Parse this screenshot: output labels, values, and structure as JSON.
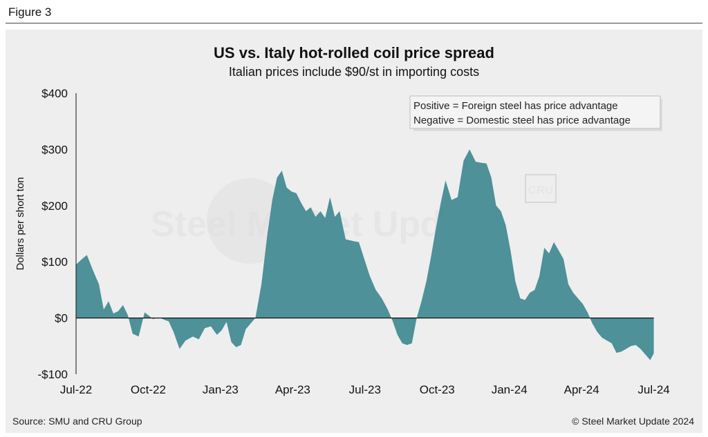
{
  "figure_label": "Figure 3",
  "source": "Source: SMU and CRU Group",
  "copyright": "© Steel Market Update 2024",
  "watermark": {
    "brand": "Steel Market Update",
    "badge": "CRU"
  },
  "colors": {
    "area": "#4e9198",
    "zero_line": "#111111",
    "background": "#eeeeee"
  },
  "chart_data": {
    "type": "area",
    "title": "US vs. Italy hot-rolled coil price spread",
    "subtitle": "Italian prices include $90/st in importing costs",
    "ylabel": "Dollars per short ton",
    "xlabel": "",
    "ylim": [
      -100,
      400
    ],
    "yticks": [
      -100,
      0,
      100,
      200,
      300,
      400
    ],
    "ytick_labels": [
      "-$100",
      "$0",
      "$100",
      "$200",
      "$300",
      "$400"
    ],
    "xlim": [
      0,
      24.5
    ],
    "xticks": [
      0,
      3,
      6,
      9,
      12,
      15,
      18,
      21,
      24
    ],
    "xtick_labels": [
      "Jul-22",
      "Oct-22",
      "Jan-23",
      "Apr-23",
      "Jul-23",
      "Oct-23",
      "Jan-24",
      "Apr-24",
      "Jul-24"
    ],
    "legend": [
      "Positive = Foreign steel has price advantage",
      "Negative = Domestic steel has price advantage"
    ],
    "legend_position": "top-right",
    "series": [
      {
        "name": "US vs. Italy HRC price spread",
        "x": [
          0,
          0.25,
          0.45,
          0.7,
          0.95,
          1.15,
          1.35,
          1.55,
          1.75,
          1.95,
          2.15,
          2.35,
          2.6,
          2.85,
          3.0,
          3.2,
          3.35,
          3.5,
          3.65,
          3.85,
          4.05,
          4.3,
          4.55,
          4.85,
          5.1,
          5.35,
          5.6,
          5.85,
          6.05,
          6.25,
          6.45,
          6.65,
          6.85,
          7.05,
          7.25,
          7.45,
          7.7,
          7.95,
          8.15,
          8.35,
          8.55,
          8.75,
          8.95,
          9.15,
          9.35,
          9.55,
          9.75,
          9.95,
          10.15,
          10.35,
          10.55,
          10.75,
          10.95,
          11.2,
          11.5,
          11.75,
          11.95,
          12.2,
          12.45,
          12.7,
          12.95,
          13.15,
          13.35,
          13.55,
          13.75,
          13.95,
          14.15,
          14.35,
          14.55,
          14.75,
          14.95,
          15.15,
          15.35,
          15.6,
          15.85,
          16.1,
          16.35,
          16.6,
          16.85,
          17.05,
          17.25,
          17.45,
          17.65,
          17.85,
          18.05,
          18.25,
          18.45,
          18.65,
          18.85,
          19.05,
          19.25,
          19.45,
          19.65,
          19.85,
          20.05,
          20.25,
          20.45,
          20.65,
          20.85,
          21.05,
          21.25,
          21.45,
          21.65,
          21.85,
          22.05,
          22.25,
          22.45,
          22.65,
          22.85,
          23.05,
          23.25,
          23.45,
          23.65,
          23.85,
          24.0
        ],
        "values": [
          95,
          105,
          112,
          85,
          60,
          15,
          30,
          8,
          12,
          23,
          5,
          -28,
          -33,
          10,
          5,
          -2,
          0,
          0,
          -3,
          -6,
          -25,
          -55,
          -40,
          -33,
          -38,
          -18,
          -15,
          -30,
          -22,
          -7,
          -43,
          -52,
          -48,
          -20,
          -10,
          0,
          60,
          150,
          210,
          250,
          262,
          232,
          225,
          222,
          205,
          190,
          197,
          180,
          190,
          178,
          215,
          180,
          190,
          140,
          137,
          135,
          108,
          75,
          50,
          35,
          15,
          -5,
          -30,
          -45,
          -48,
          -45,
          0,
          30,
          65,
          110,
          160,
          205,
          245,
          210,
          215,
          280,
          300,
          278,
          276,
          275,
          250,
          200,
          190,
          165,
          120,
          65,
          35,
          32,
          45,
          50,
          75,
          125,
          115,
          135,
          120,
          105,
          60,
          45,
          35,
          25,
          10,
          -10,
          -25,
          -35,
          -40,
          -45,
          -62,
          -60,
          -55,
          -50,
          -48,
          -55,
          -65,
          -75,
          -63
        ]
      }
    ]
  }
}
